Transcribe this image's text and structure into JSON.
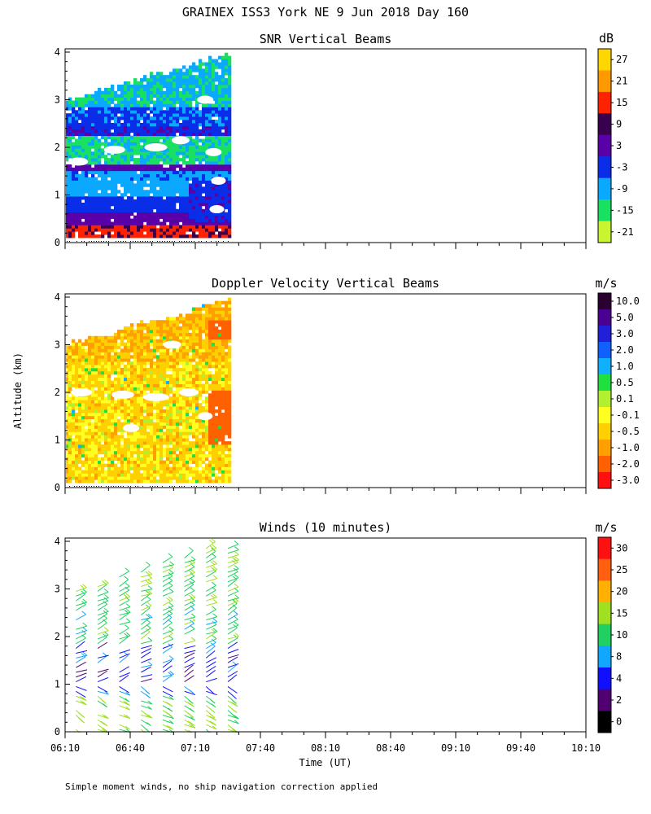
{
  "figure": {
    "title": "GRAINEX ISS3 York NE   9 Jun 2018 Day 160",
    "ylabel": "Altitude (km)",
    "xlabel": "Time (UT)",
    "footnote": "Simple moment winds, no ship navigation correction applied"
  },
  "chart_data": [
    {
      "type": "heatmap",
      "title": "SNR Vertical Beams",
      "xlabel": "Time (UT)",
      "ylabel": "Altitude (km)",
      "x_ticks": [
        "06:10",
        "06:40",
        "07:10",
        "07:40",
        "08:10",
        "08:40",
        "09:10",
        "09:40",
        "10:10"
      ],
      "x_range": [
        "06:10",
        "10:10"
      ],
      "y_ticks": [
        0,
        1,
        2,
        3,
        4
      ],
      "ylim": [
        0,
        4
      ],
      "data_extent": {
        "time_start": "06:10",
        "time_end": "07:26",
        "alt_min_km": 0.1,
        "alt_max_km": 3.95
      },
      "colorbar": {
        "unit": "dB",
        "labels": [
          "27",
          "21",
          "15",
          "9",
          "3",
          "-3",
          "-9",
          "-15",
          "-21"
        ],
        "colors": [
          "#ffd700",
          "#ff9900",
          "#ff2200",
          "#3a0050",
          "#5a00a8",
          "#0a2ee8",
          "#0aa8ff",
          "#18e060",
          "#c8f530"
        ]
      }
    },
    {
      "type": "heatmap",
      "title": "Doppler Velocity Vertical Beams",
      "xlabel": "Time (UT)",
      "ylabel": "Altitude (km)",
      "x_ticks": [
        "06:10",
        "06:40",
        "07:10",
        "07:40",
        "08:10",
        "08:40",
        "09:10",
        "09:40",
        "10:10"
      ],
      "x_range": [
        "06:10",
        "10:10"
      ],
      "y_ticks": [
        0,
        1,
        2,
        3,
        4
      ],
      "ylim": [
        0,
        4
      ],
      "data_extent": {
        "time_start": "06:10",
        "time_end": "07:26",
        "alt_min_km": 0.1,
        "alt_max_km": 3.95
      },
      "colorbar": {
        "unit": "m/s",
        "labels": [
          "10.0",
          "5.0",
          "3.0",
          "2.0",
          "1.0",
          "0.5",
          "0.1",
          "-0.1",
          "-0.5",
          "-1.0",
          "-2.0",
          "-3.0"
        ],
        "colors": [
          "#2a0030",
          "#4a0090",
          "#2020d8",
          "#1060ff",
          "#10b0ff",
          "#20e040",
          "#b0f030",
          "#ffff20",
          "#ffd000",
          "#ffa000",
          "#ff6000",
          "#ff1010"
        ]
      }
    },
    {
      "type": "scatter",
      "title": "Winds (10 minutes)",
      "xlabel": "Time (UT)",
      "ylabel": "Altitude (km)",
      "x_ticks": [
        "06:10",
        "06:40",
        "07:10",
        "07:40",
        "08:10",
        "08:40",
        "09:10",
        "09:40",
        "10:10"
      ],
      "x_range": [
        "06:10",
        "10:10"
      ],
      "y_ticks": [
        0,
        1,
        2,
        3,
        4
      ],
      "ylim": [
        0,
        4
      ],
      "profile_times": [
        "06:10",
        "06:20",
        "06:30",
        "06:40",
        "06:50",
        "07:00",
        "07:10",
        "07:20"
      ],
      "colorbar": {
        "unit": "m/s",
        "labels": [
          "30",
          "25",
          "20",
          "15",
          "10",
          "8",
          "4",
          "2",
          "0"
        ],
        "colors": [
          "#ff1010",
          "#ff6010",
          "#ffb000",
          "#a0e020",
          "#20d060",
          "#10a8ff",
          "#1010ff",
          "#500070",
          "#000000"
        ]
      }
    }
  ]
}
